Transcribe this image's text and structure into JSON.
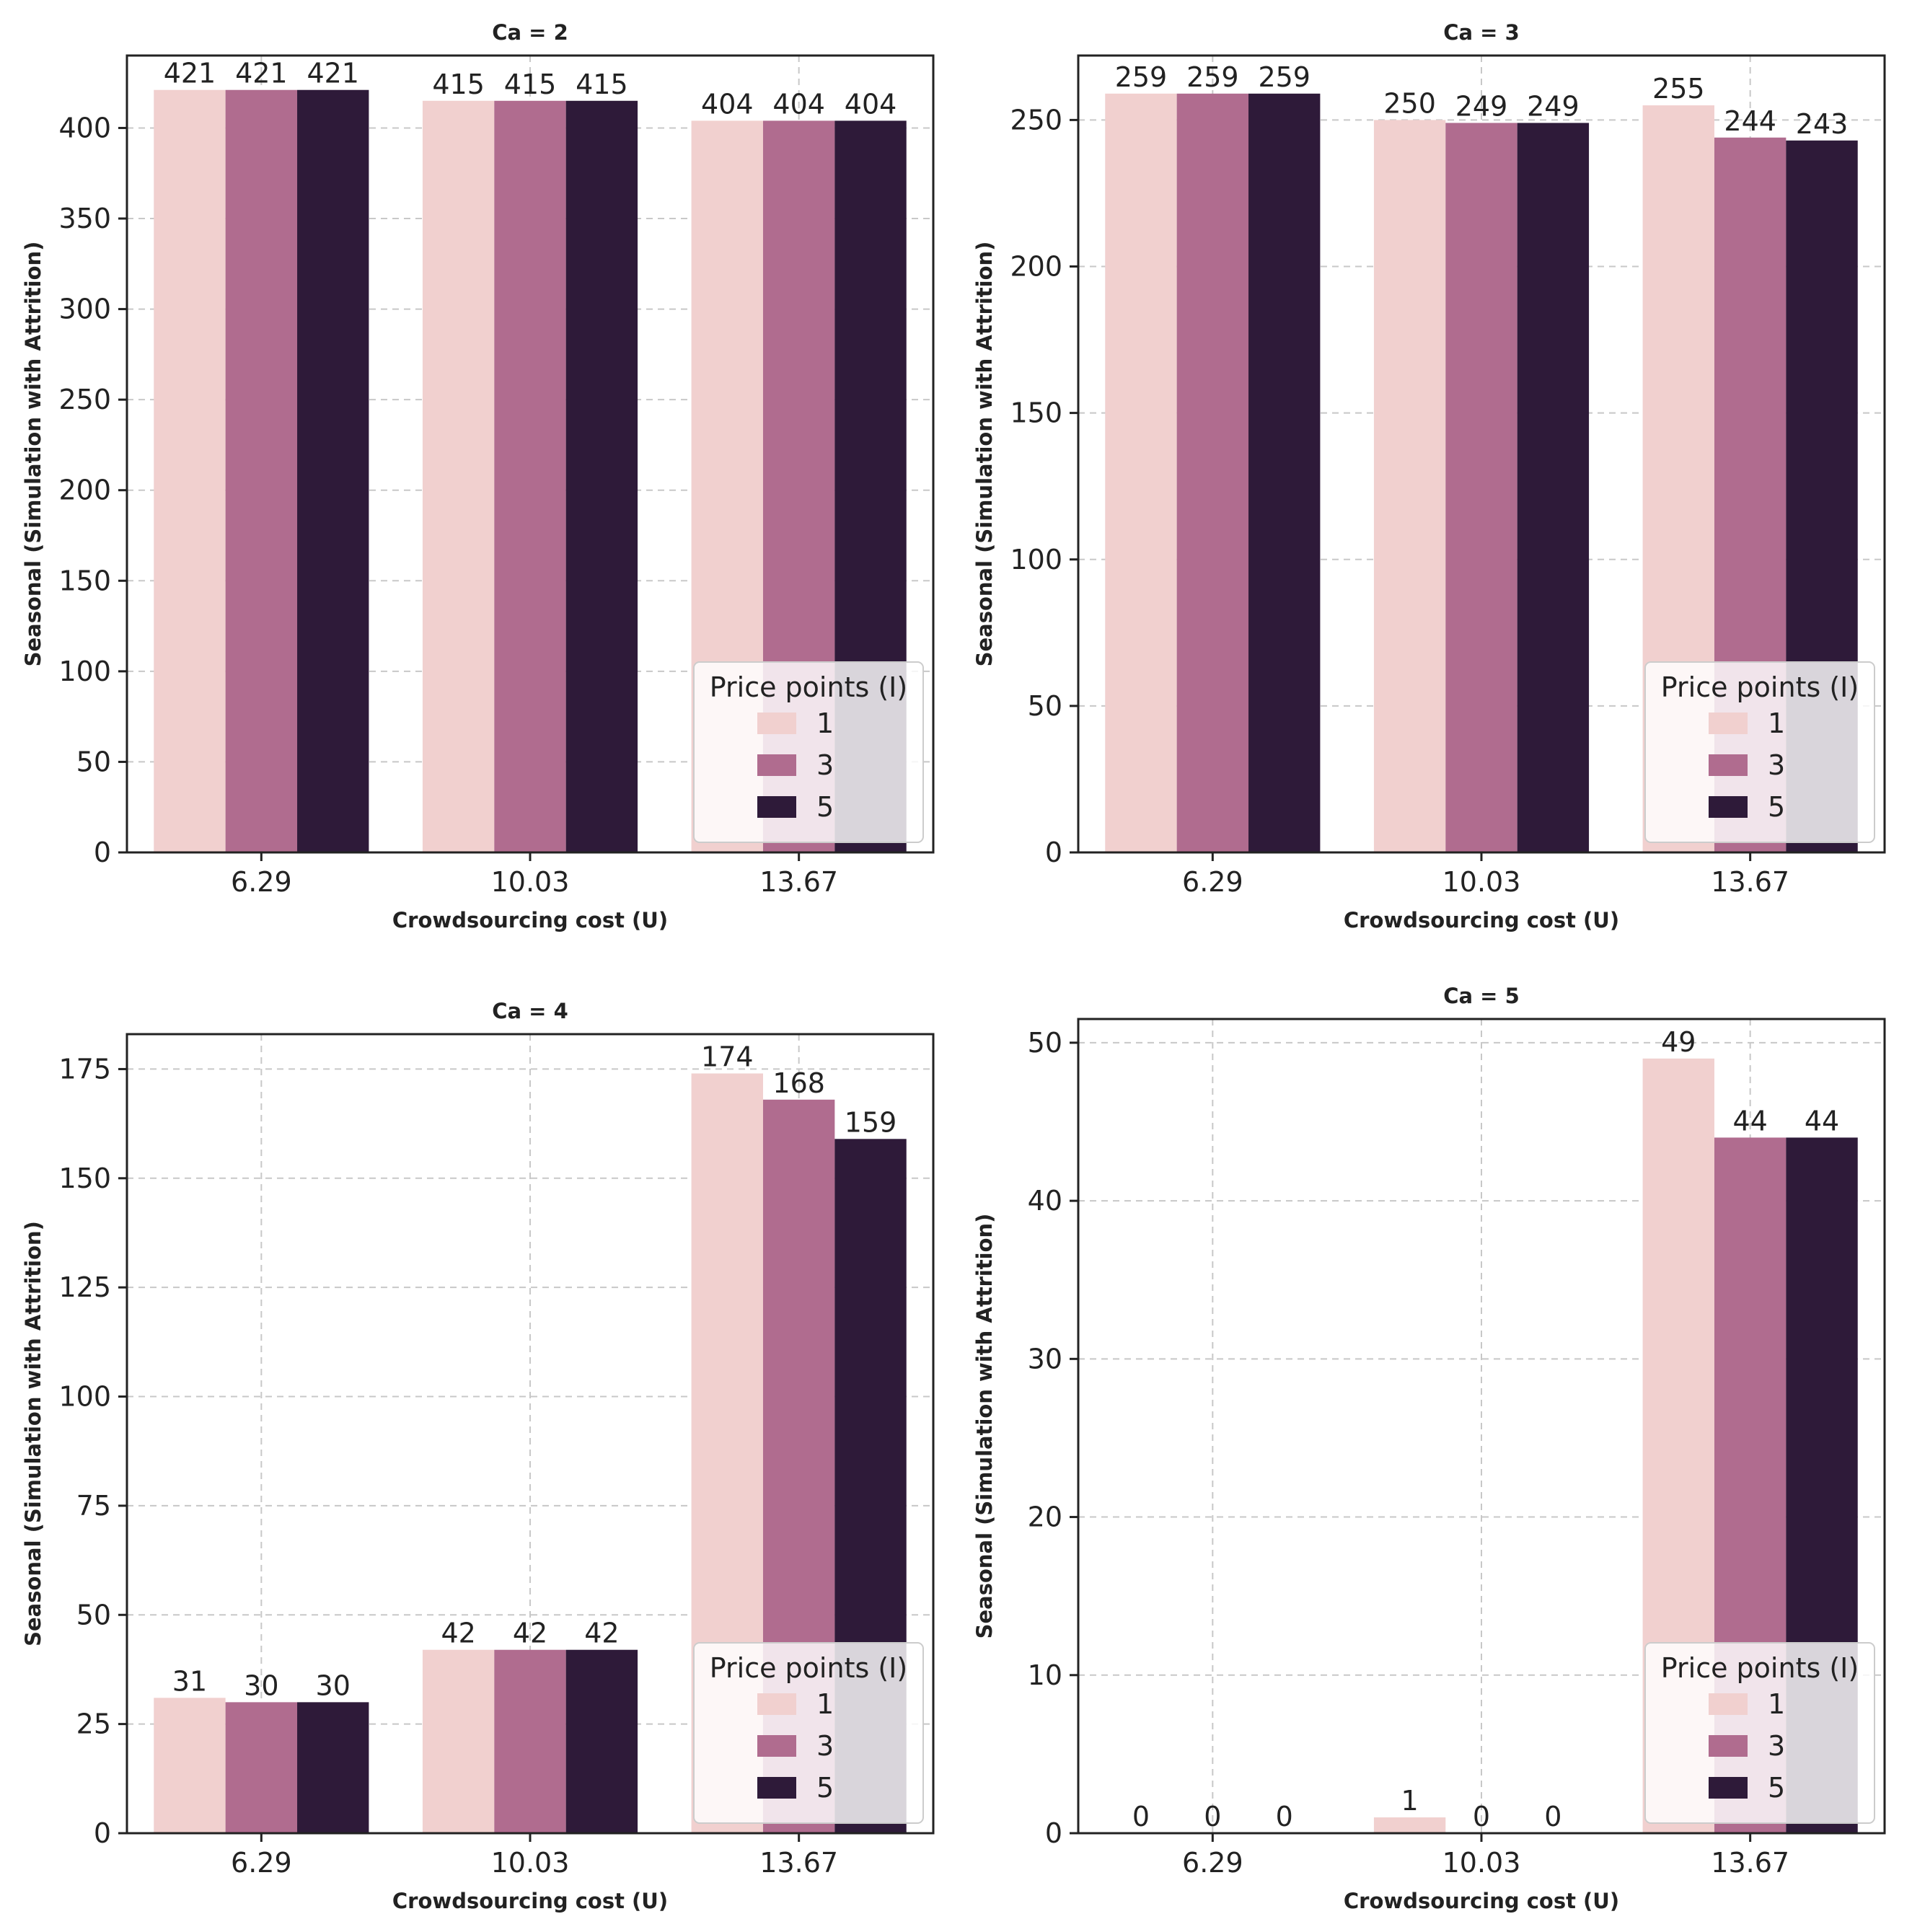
{
  "figure": {
    "legend_title": "Price points (I)",
    "series_names": [
      "1",
      "3",
      "5"
    ],
    "colors": [
      "#f1d0cf",
      "#b06c8f",
      "#2e1a39"
    ]
  },
  "chart_data": [
    {
      "type": "bar",
      "title": "Ca = 2",
      "xlabel": "Crowdsourcing cost (U)",
      "ylabel": "Seasonal (Simulation with Attrition)",
      "categories": [
        "6.29",
        "10.03",
        "13.67"
      ],
      "ylim": [
        0,
        440
      ],
      "yticks": [
        0,
        50,
        100,
        150,
        200,
        250,
        300,
        350,
        400
      ],
      "grid": true,
      "legend_position": "lower-right",
      "series": [
        {
          "name": "1",
          "values": [
            421,
            415,
            404
          ]
        },
        {
          "name": "3",
          "values": [
            421,
            415,
            404
          ]
        },
        {
          "name": "5",
          "values": [
            421,
            415,
            404
          ]
        }
      ]
    },
    {
      "type": "bar",
      "title": "Ca = 3",
      "xlabel": "Crowdsourcing cost (U)",
      "ylabel": "Seasonal (Simulation with Attrition)",
      "categories": [
        "6.29",
        "10.03",
        "13.67"
      ],
      "ylim": [
        0,
        272
      ],
      "yticks": [
        0,
        50,
        100,
        150,
        200,
        250
      ],
      "grid": true,
      "legend_position": "lower-right",
      "series": [
        {
          "name": "1",
          "values": [
            259,
            250,
            255
          ]
        },
        {
          "name": "3",
          "values": [
            259,
            249,
            244
          ]
        },
        {
          "name": "5",
          "values": [
            259,
            249,
            243
          ]
        }
      ]
    },
    {
      "type": "bar",
      "title": "Ca = 4",
      "xlabel": "Crowdsourcing cost (U)",
      "ylabel": "Seasonal (Simulation with Attrition)",
      "categories": [
        "6.29",
        "10.03",
        "13.67"
      ],
      "ylim": [
        0,
        183
      ],
      "yticks": [
        0,
        25,
        50,
        75,
        100,
        125,
        150,
        175
      ],
      "grid": true,
      "legend_position": "lower-right",
      "series": [
        {
          "name": "1",
          "values": [
            31,
            42,
            174
          ]
        },
        {
          "name": "3",
          "values": [
            30,
            42,
            168
          ]
        },
        {
          "name": "5",
          "values": [
            30,
            42,
            159
          ]
        }
      ]
    },
    {
      "type": "bar",
      "title": "Ca = 5",
      "xlabel": "Crowdsourcing cost (U)",
      "ylabel": "Seasonal (Simulation with Attrition)",
      "categories": [
        "6.29",
        "10.03",
        "13.67"
      ],
      "ylim": [
        0,
        51.5
      ],
      "yticks": [
        0,
        10,
        20,
        30,
        40,
        50
      ],
      "grid": true,
      "legend_position": "lower-right",
      "series": [
        {
          "name": "1",
          "values": [
            0,
            1,
            49
          ]
        },
        {
          "name": "3",
          "values": [
            0,
            0,
            44
          ]
        },
        {
          "name": "5",
          "values": [
            0,
            0,
            44
          ]
        }
      ]
    }
  ]
}
